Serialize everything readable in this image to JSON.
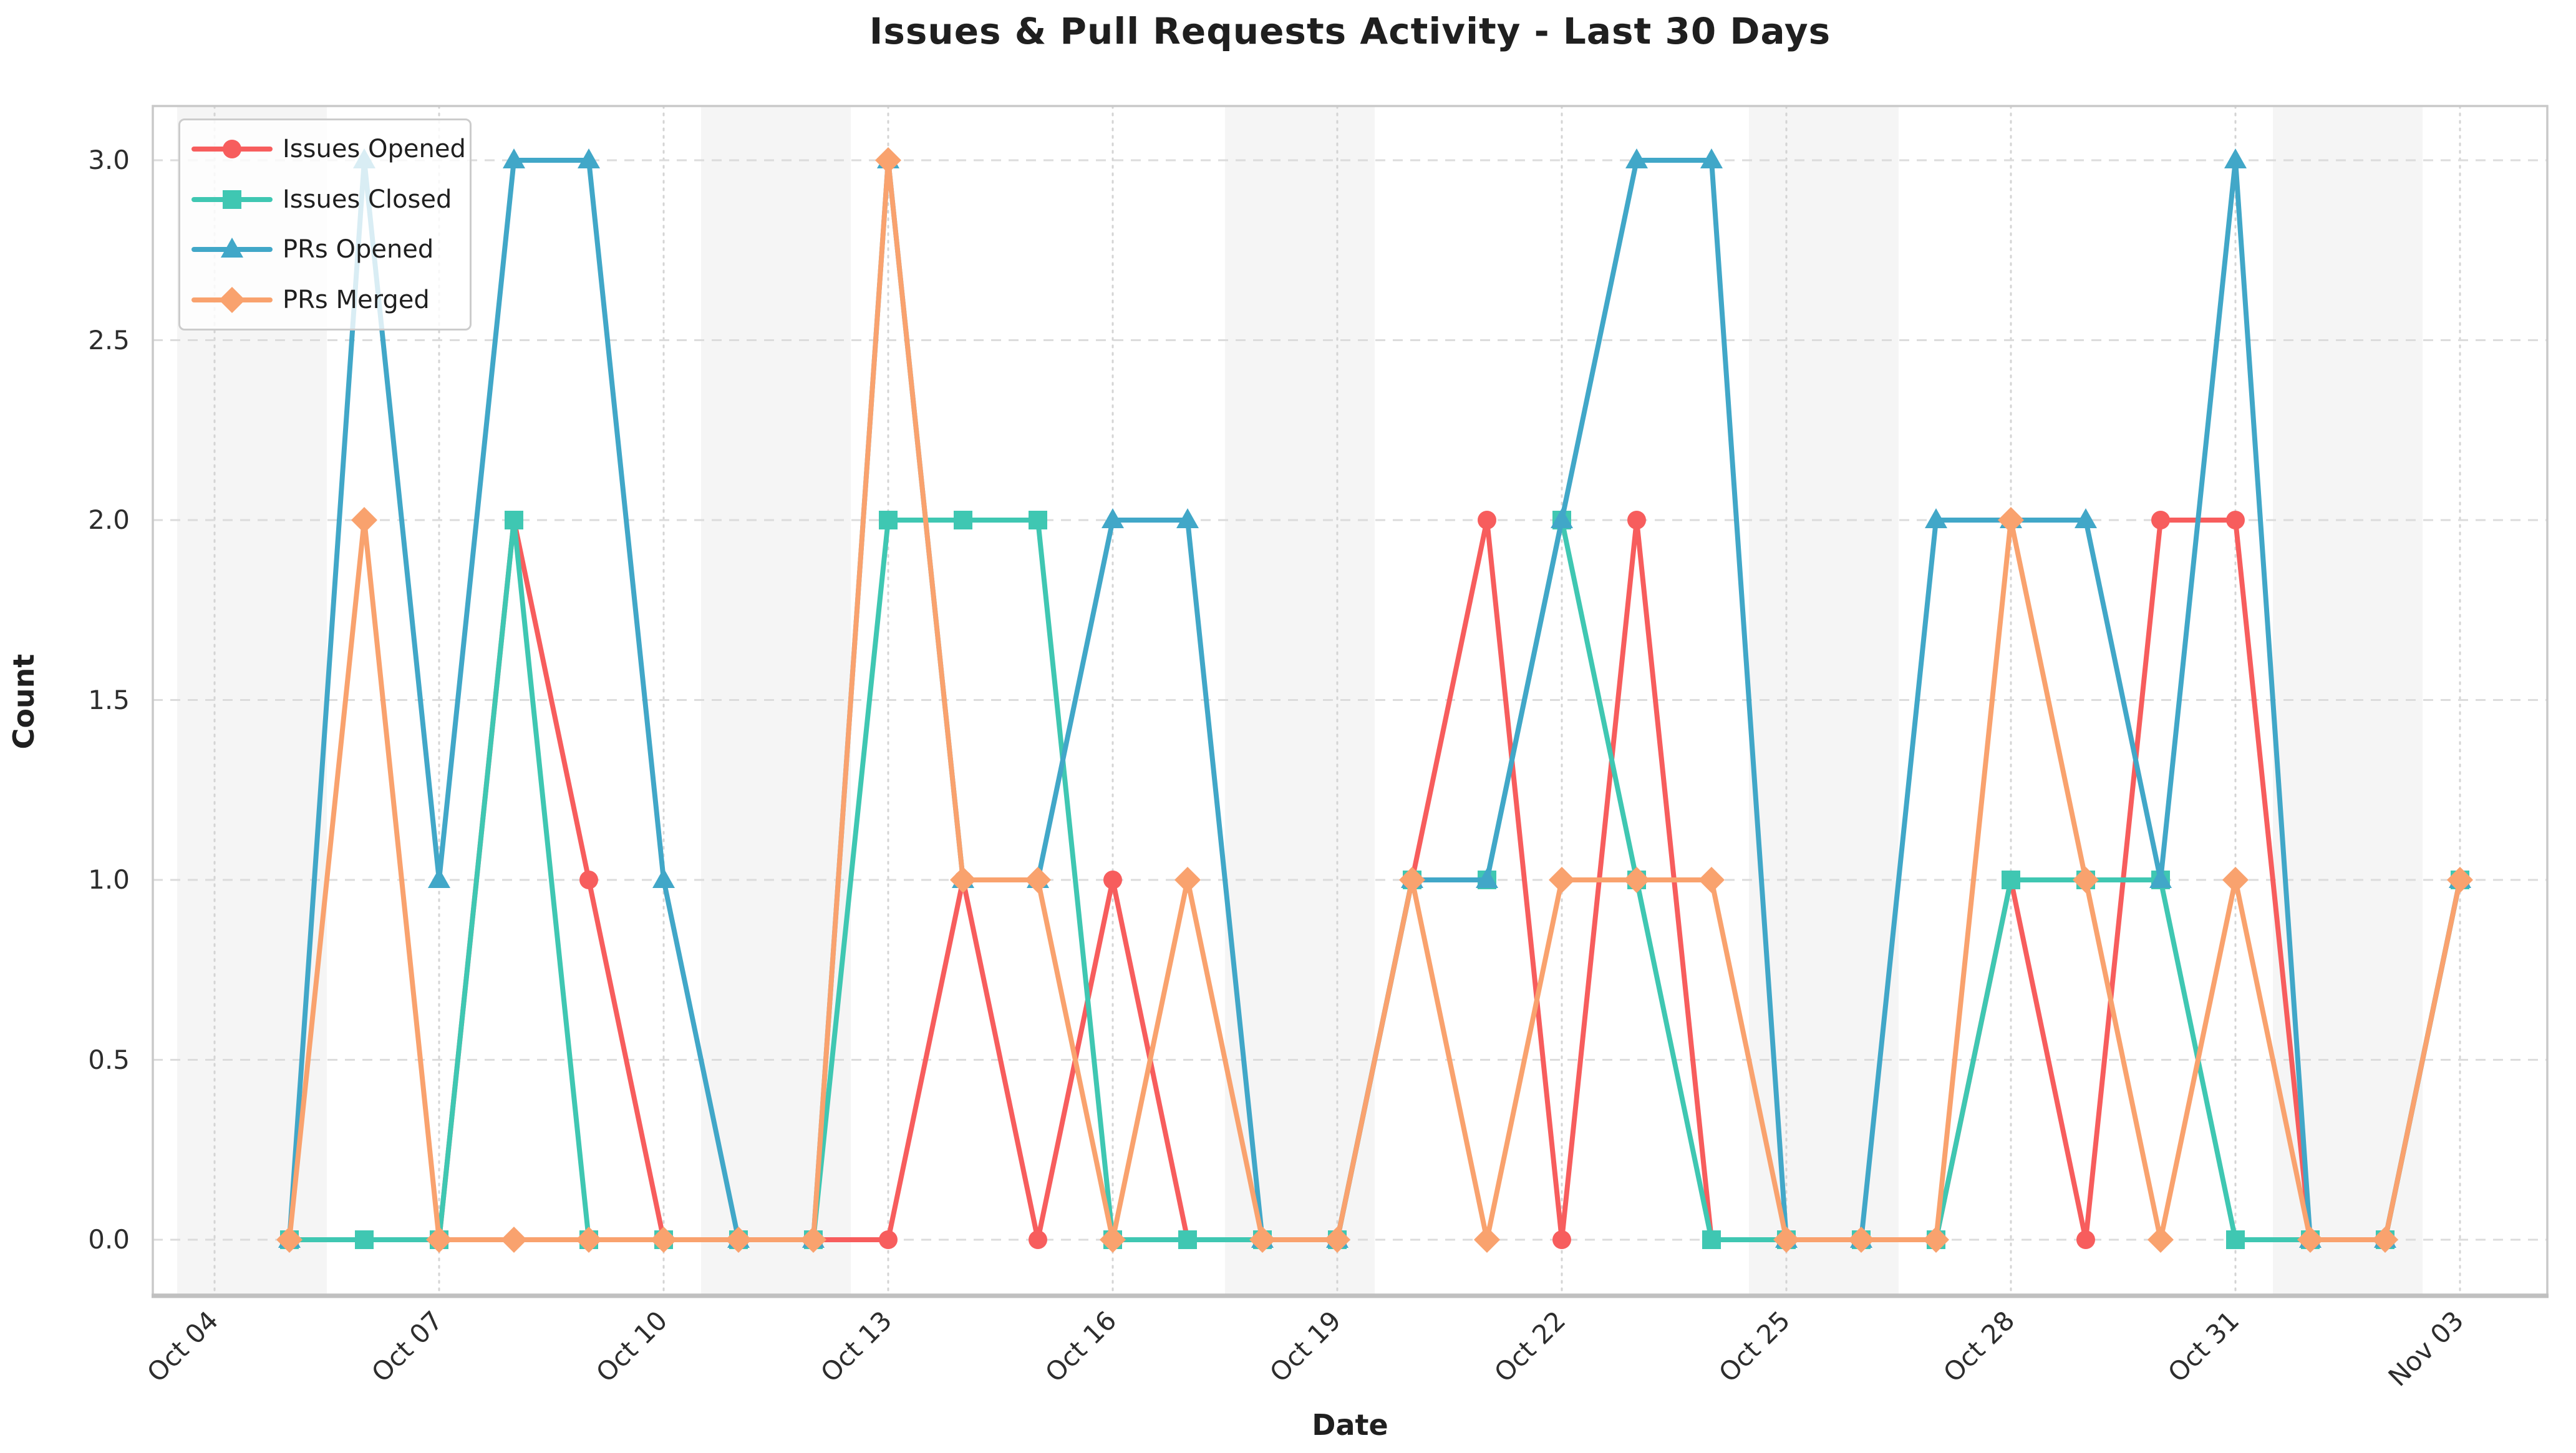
{
  "title": "Issues & Pull Requests Activity - Last 30 Days",
  "chart_data": {
    "type": "line",
    "title": "Issues & Pull Requests Activity - Last 30 Days",
    "xlabel": "Date",
    "ylabel": "Count",
    "grid": true,
    "legend_position": "upper-left",
    "ylim": [
      -0.15,
      3.15
    ],
    "y_ticks": [
      "0.0",
      "0.5",
      "1.0",
      "1.5",
      "2.0",
      "2.5",
      "3.0"
    ],
    "y_tick_values": [
      0,
      0.5,
      1,
      1.5,
      2,
      2.5,
      3
    ],
    "x": [
      "Oct 05",
      "Oct 06",
      "Oct 07",
      "Oct 08",
      "Oct 09",
      "Oct 10",
      "Oct 11",
      "Oct 12",
      "Oct 13",
      "Oct 14",
      "Oct 15",
      "Oct 16",
      "Oct 17",
      "Oct 18",
      "Oct 19",
      "Oct 20",
      "Oct 21",
      "Oct 22",
      "Oct 23",
      "Oct 24",
      "Oct 25",
      "Oct 26",
      "Oct 27",
      "Oct 28",
      "Oct 29",
      "Oct 30",
      "Oct 31",
      "Nov 01",
      "Nov 02",
      "Nov 03"
    ],
    "x_ticks": [
      {
        "label": "Oct 04",
        "day": -1
      },
      {
        "label": "Oct 07",
        "day": 2
      },
      {
        "label": "Oct 10",
        "day": 5
      },
      {
        "label": "Oct 13",
        "day": 8
      },
      {
        "label": "Oct 16",
        "day": 11
      },
      {
        "label": "Oct 19",
        "day": 14
      },
      {
        "label": "Oct 22",
        "day": 17
      },
      {
        "label": "Oct 25",
        "day": 20
      },
      {
        "label": "Oct 28",
        "day": 23
      },
      {
        "label": "Oct 31",
        "day": 26
      },
      {
        "label": "Nov 03",
        "day": 29
      }
    ],
    "weekend_bands_day_spans": [
      [
        -1.5,
        0.5
      ],
      [
        5.5,
        7.5
      ],
      [
        12.5,
        14.5
      ],
      [
        19.5,
        21.5
      ],
      [
        26.5,
        28.5
      ]
    ],
    "series": [
      {
        "name": "Issues Opened",
        "color": "#F75D5D",
        "marker": "circle",
        "values": [
          0,
          0,
          0,
          2,
          1,
          0,
          0,
          0,
          0,
          1,
          0,
          1,
          0,
          0,
          0,
          1,
          2,
          0,
          2,
          0,
          0,
          0,
          0,
          1,
          0,
          2,
          2,
          0,
          0,
          1
        ]
      },
      {
        "name": "Issues Closed",
        "color": "#3FC7B2",
        "marker": "square",
        "values": [
          0,
          0,
          0,
          2,
          0,
          0,
          0,
          0,
          2,
          2,
          2,
          0,
          0,
          0,
          0,
          1,
          1,
          2,
          1,
          0,
          0,
          0,
          0,
          1,
          1,
          1,
          0,
          0,
          0,
          1
        ]
      },
      {
        "name": "PRs Opened",
        "color": "#41A7C8",
        "marker": "triangle",
        "values": [
          0,
          3,
          1,
          3,
          3,
          1,
          0,
          0,
          3,
          1,
          1,
          2,
          2,
          0,
          0,
          1,
          1,
          2,
          3,
          3,
          0,
          0,
          2,
          2,
          2,
          1,
          3,
          0,
          0,
          1
        ]
      },
      {
        "name": "PRs Merged",
        "color": "#F9A26E",
        "marker": "diamond",
        "values": [
          0,
          2,
          0,
          0,
          0,
          0,
          0,
          0,
          3,
          1,
          1,
          0,
          1,
          0,
          0,
          1,
          0,
          1,
          1,
          1,
          0,
          0,
          0,
          2,
          1,
          0,
          1,
          0,
          0,
          1
        ]
      }
    ]
  },
  "colors": {
    "weekend_band": "#ececec",
    "hgrid": "#dcdcdc",
    "vgrid": "#d4d4d4",
    "spine": "#c9c9c9",
    "bottom_spine": "#c0c0c0"
  }
}
